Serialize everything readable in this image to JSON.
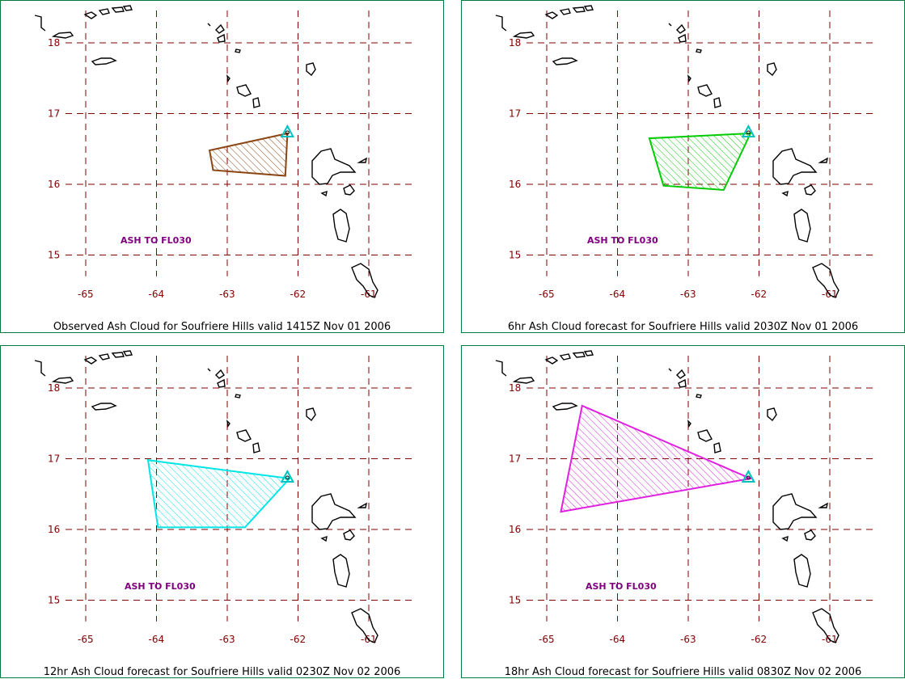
{
  "map": {
    "lat_ticks": [
      "18",
      "17",
      "16",
      "15"
    ],
    "lon_ticks": [
      "-65",
      "-64",
      "-63",
      "-62",
      "-61"
    ],
    "grid_color": "#800000",
    "coast_color": "#000000",
    "volcano_color": "#00c0c0"
  },
  "panels": [
    {
      "caption": "Observed Ash Cloud for Soufriere  Hills valid 1415Z Nov 01 2006",
      "ash_label": "ASH TO FL030",
      "cloud_color": "#8b4513",
      "polygon_lonlat": [
        [
          -62.15,
          16.72
        ],
        [
          -63.25,
          16.48
        ],
        [
          -63.2,
          16.2
        ],
        [
          -62.18,
          16.12
        ]
      ]
    },
    {
      "caption": "6hr Ash Cloud forecast for Soufriere  Hills valid 2030Z Nov 01 2006",
      "ash_label": "ASH TO FL030",
      "cloud_color": "#00cc00",
      "polygon_lonlat": [
        [
          -62.12,
          16.72
        ],
        [
          -63.55,
          16.65
        ],
        [
          -63.35,
          15.98
        ],
        [
          -62.5,
          15.92
        ]
      ]
    },
    {
      "caption": "12hr Ash Cloud forecast for Soufriere  Hills valid 0230Z Nov 02 2006",
      "ash_label": "ASH TO FL030",
      "cloud_color": "#00e5e5",
      "polygon_lonlat": [
        [
          -62.12,
          16.72
        ],
        [
          -64.12,
          16.98
        ],
        [
          -63.98,
          16.03
        ],
        [
          -62.75,
          16.03
        ]
      ]
    },
    {
      "caption": "18hr Ash Cloud forecast for Soufriere  Hills valid 0830Z Nov 02 2006",
      "ash_label": "ASH TO FL030",
      "cloud_color": "#e020e0",
      "polygon_lonlat": [
        [
          -62.12,
          16.72
        ],
        [
          -64.5,
          17.75
        ],
        [
          -64.8,
          16.25
        ]
      ]
    }
  ]
}
